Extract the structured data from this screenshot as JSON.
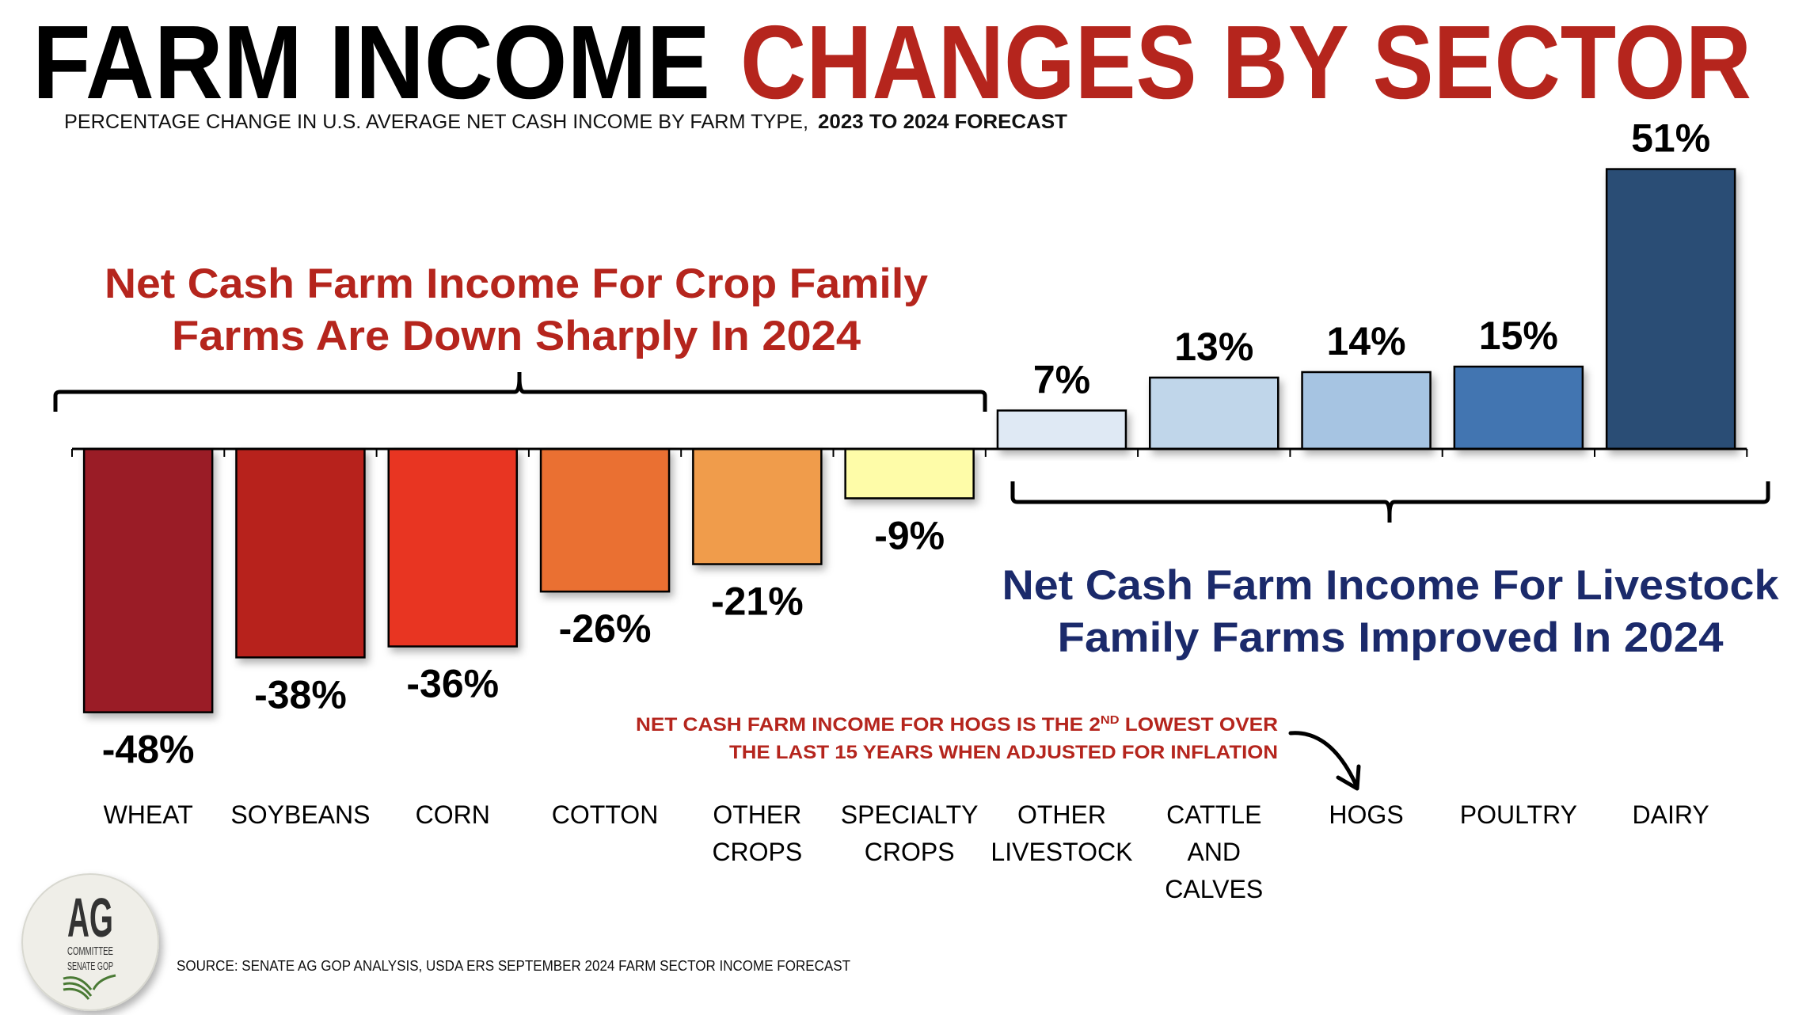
{
  "title": {
    "part1": "FARM INCOME",
    "part2": "CHANGES BY SECTOR",
    "part1_color": "#000000",
    "part2_color": "#b5251d"
  },
  "subtitle": {
    "normal": "PERCENTAGE CHANGE IN U.S. AVERAGE NET CASH INCOME BY FARM TYPE,",
    "bold": "2023 TO 2024 FORECAST"
  },
  "annotations": {
    "crop": {
      "line1": "Net Cash Farm Income For Crop Family",
      "line2": "Farms Are Down Sharply In 2024",
      "color": "#b5251d"
    },
    "livestock": {
      "line1": "Net Cash Farm Income For Livestock",
      "line2": "Family Farms Improved In 2024",
      "color": "#1b2a6b"
    },
    "hogs_note": {
      "line1_a": "NET CASH FARM INCOME FOR HOGS IS THE 2",
      "line1_sup": "ND",
      "line1_b": " LOWEST OVER",
      "line2": "THE LAST 15 YEARS WHEN ADJUSTED FOR INFLATION"
    }
  },
  "source": "SOURCE: SENATE AG GOP ANALYSIS, USDA ERS SEPTEMBER 2024 FARM SECTOR INCOME FORECAST",
  "logo": {
    "big": "AG",
    "line1": "COMMITTEE",
    "line2": "SENATE GOP"
  },
  "chart_data": {
    "type": "bar",
    "title": "FARM INCOME CHANGES BY SECTOR",
    "subtitle": "PERCENTAGE CHANGE IN U.S. AVERAGE NET CASH INCOME BY FARM TYPE, 2023 TO 2024 FORECAST",
    "unit": "%",
    "grid": false,
    "categories": [
      [
        "WHEAT"
      ],
      [
        "SOYBEANS"
      ],
      [
        "CORN"
      ],
      [
        "COTTON"
      ],
      [
        "OTHER",
        "CROPS"
      ],
      [
        "SPECIALTY",
        "CROPS"
      ],
      [
        "OTHER",
        "LIVESTOCK"
      ],
      [
        "CATTLE",
        "AND",
        "CALVES"
      ],
      [
        "HOGS"
      ],
      [
        "POULTRY"
      ],
      [
        "DAIRY"
      ]
    ],
    "values": [
      -48,
      -38,
      -36,
      -26,
      -21,
      -9,
      7,
      13,
      14,
      15,
      51
    ],
    "labels": [
      "-48%",
      "-38%",
      "-36%",
      "-26%",
      "-21%",
      "-9%",
      "7%",
      "13%",
      "14%",
      "15%",
      "51%"
    ],
    "colors": [
      "#9a1c28",
      "#b7241e",
      "#e83424",
      "#ea7030",
      "#f09c4c",
      "#fefca8",
      "#dfe9f4",
      "#c0d6ea",
      "#a6c4e2",
      "#4275b1",
      "#2c4d74"
    ]
  }
}
